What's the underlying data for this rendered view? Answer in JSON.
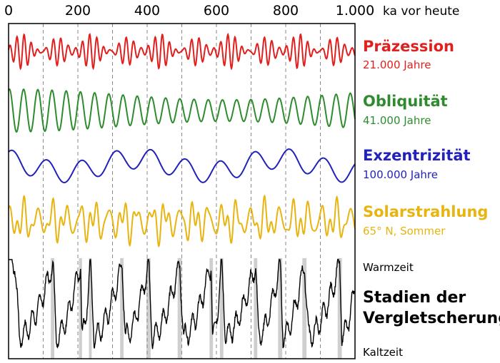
{
  "chart_data": {
    "type": "line",
    "x_axis": {
      "ticks": [
        0,
        200,
        400,
        600,
        800,
        1000
      ],
      "tick_labels": [
        "0",
        "200",
        "400",
        "600",
        "800",
        "1.000"
      ],
      "unit_label": "ka vor heute",
      "range": [
        0,
        1000
      ]
    },
    "series": [
      {
        "name": "Präzession",
        "period_label": "21.000 Jahre",
        "color": "#e0201e",
        "period_ka": 21
      },
      {
        "name": "Obliquität",
        "period_label": "41.000 Jahre",
        "color": "#2e8b2e",
        "period_ka": 41
      },
      {
        "name": "Exzentrizität",
        "period_label": "100.000 Jahre",
        "color": "#2222bb",
        "period_ka": 100
      },
      {
        "name": "Solarstrahlung",
        "period_label": "65° N, Sommer",
        "color": "#e8b410"
      },
      {
        "name": "Stadien der Vergletscherung",
        "color": "#000000"
      }
    ],
    "glaciation_scale": {
      "top_label": "Warmzeit",
      "bottom_label": "Kaltzeit"
    },
    "interglacial_bands_ka": [
      [
        122,
        132
      ],
      [
        203,
        212
      ],
      [
        232,
        240
      ],
      [
        322,
        332
      ],
      [
        398,
        410
      ],
      [
        488,
        500
      ],
      [
        580,
        590
      ],
      [
        610,
        620
      ],
      [
        708,
        718
      ],
      [
        778,
        790
      ],
      [
        848,
        860
      ],
      [
        950,
        962
      ]
    ],
    "dashed_gridlines_ka": [
      100,
      200,
      300,
      400,
      500,
      600,
      700,
      800,
      900
    ]
  },
  "labels": {
    "praezession_title": "Präzession",
    "praezession_sub": "21.000 Jahre",
    "obliquitaet_title": "Obliquität",
    "obliquitaet_sub": "41.000 Jahre",
    "exzentrizitaet_title": "Exzentrizität",
    "exzentrizitaet_sub": "100.000 Jahre",
    "solar_title": "Solarstrahlung",
    "solar_sub": "65° N, Sommer",
    "warmzeit": "Warmzeit",
    "stadien": "Stadien der Vergletscherung",
    "kaltzeit": "Kaltzeit"
  }
}
